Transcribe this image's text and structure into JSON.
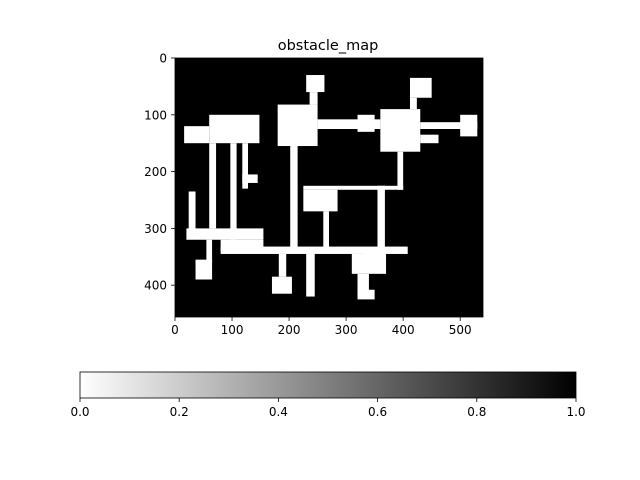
{
  "chart_data": {
    "type": "heatmap",
    "title": "obstacle_map",
    "xlim": [
      0,
      540
    ],
    "ylim": [
      456,
      0
    ],
    "x_ticks": [
      0,
      100,
      200,
      300,
      400,
      500
    ],
    "y_ticks": [
      0,
      100,
      200,
      300,
      400
    ],
    "background_value": 1.0,
    "free_value": 0.0,
    "colormap": "gray_r",
    "free_regions": [
      {
        "x": [
          16,
          60
        ],
        "y": [
          120,
          150
        ]
      },
      {
        "x": [
          60,
          148
        ],
        "y": [
          100,
          150
        ]
      },
      {
        "x": [
          97,
          108
        ],
        "y": [
          150,
          320
        ]
      },
      {
        "x": [
          60,
          72
        ],
        "y": [
          150,
          300
        ]
      },
      {
        "x": [
          20,
          155
        ],
        "y": [
          300,
          320
        ]
      },
      {
        "x": [
          80,
          155
        ],
        "y": [
          320,
          340
        ]
      },
      {
        "x": [
          118,
          128
        ],
        "y": [
          150,
          230
        ]
      },
      {
        "x": [
          118,
          145
        ],
        "y": [
          205,
          220
        ]
      },
      {
        "x": [
          24,
          36
        ],
        "y": [
          235,
          305
        ]
      },
      {
        "x": [
          55,
          65
        ],
        "y": [
          320,
          360
        ]
      },
      {
        "x": [
          36,
          65
        ],
        "y": [
          355,
          390
        ]
      },
      {
        "x": [
          80,
          408
        ],
        "y": [
          332,
          345
        ]
      },
      {
        "x": [
          180,
          250
        ],
        "y": [
          82,
          155
        ]
      },
      {
        "x": [
          202,
          215
        ],
        "y": [
          155,
          340
        ]
      },
      {
        "x": [
          250,
          360
        ],
        "y": [
          108,
          125
        ]
      },
      {
        "x": [
          230,
          262
        ],
        "y": [
          30,
          60
        ]
      },
      {
        "x": [
          236,
          250
        ],
        "y": [
          60,
          82
        ]
      },
      {
        "x": [
          320,
          350
        ],
        "y": [
          100,
          130
        ]
      },
      {
        "x": [
          360,
          430
        ],
        "y": [
          90,
          165
        ]
      },
      {
        "x": [
          430,
          462
        ],
        "y": [
          135,
          150
        ]
      },
      {
        "x": [
          412,
          450
        ],
        "y": [
          35,
          70
        ]
      },
      {
        "x": [
          412,
          424
        ],
        "y": [
          70,
          90
        ]
      },
      {
        "x": [
          430,
          530
        ],
        "y": [
          113,
          125
        ]
      },
      {
        "x": [
          500,
          530
        ],
        "y": [
          100,
          138
        ]
      },
      {
        "x": [
          390,
          400
        ],
        "y": [
          165,
          232
        ]
      },
      {
        "x": [
          225,
          400
        ],
        "y": [
          225,
          232
        ]
      },
      {
        "x": [
          225,
          285
        ],
        "y": [
          232,
          270
        ]
      },
      {
        "x": [
          260,
          270
        ],
        "y": [
          270,
          335
        ]
      },
      {
        "x": [
          355,
          368
        ],
        "y": [
          225,
          345
        ]
      },
      {
        "x": [
          310,
          370
        ],
        "y": [
          345,
          380
        ]
      },
      {
        "x": [
          330,
          365
        ],
        "y": [
          335,
          355
        ]
      },
      {
        "x": [
          320,
          340
        ],
        "y": [
          380,
          420
        ]
      },
      {
        "x": [
          320,
          350
        ],
        "y": [
          408,
          425
        ]
      },
      {
        "x": [
          230,
          245
        ],
        "y": [
          340,
          420
        ]
      },
      {
        "x": [
          170,
          205
        ],
        "y": [
          385,
          415
        ]
      },
      {
        "x": [
          182,
          195
        ],
        "y": [
          345,
          385
        ]
      }
    ]
  },
  "colorbar": {
    "ticks": [
      "0.0",
      "0.2",
      "0.4",
      "0.6",
      "0.8",
      "1.0"
    ],
    "orientation": "horizontal",
    "colormap": "gray_r"
  }
}
